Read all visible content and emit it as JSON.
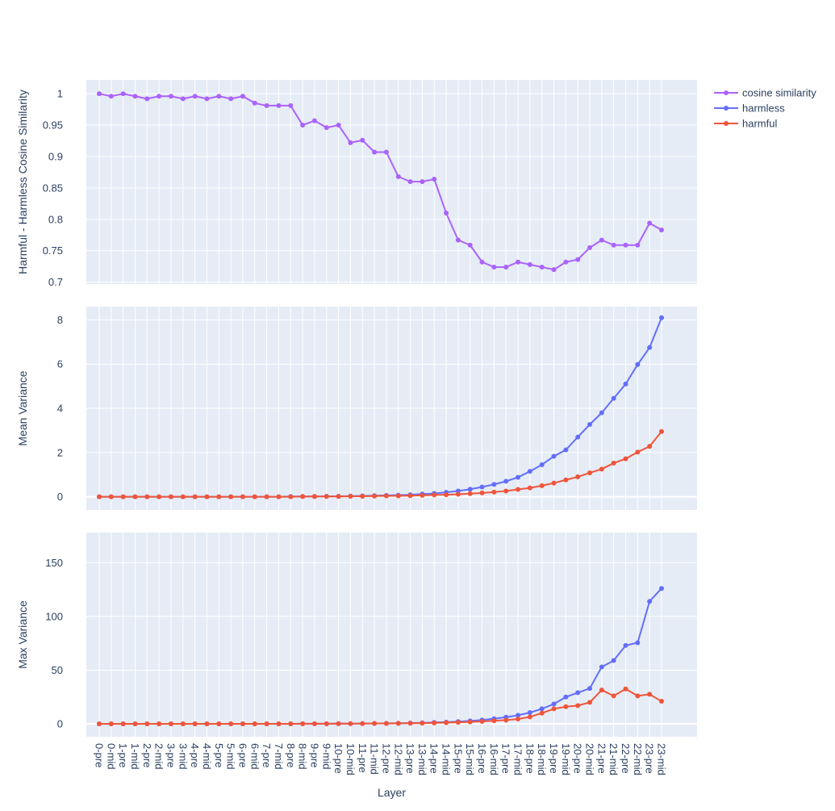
{
  "chart_data": {
    "type": "line",
    "x_categories": [
      "0-pre",
      "0-mid",
      "1-pre",
      "1-mid",
      "2-pre",
      "2-mid",
      "3-pre",
      "3-mid",
      "4-pre",
      "4-mid",
      "5-pre",
      "5-mid",
      "6-pre",
      "6-mid",
      "7-pre",
      "7-mid",
      "8-pre",
      "8-mid",
      "9-pre",
      "9-mid",
      "10-pre",
      "10-mid",
      "11-pre",
      "11-mid",
      "12-pre",
      "12-mid",
      "13-pre",
      "13-mid",
      "14-pre",
      "14-mid",
      "15-pre",
      "15-mid",
      "16-pre",
      "16-mid",
      "17-pre",
      "17-mid",
      "18-pre",
      "18-mid",
      "19-pre",
      "19-mid",
      "20-pre",
      "20-mid",
      "21-pre",
      "21-mid",
      "22-pre",
      "22-mid",
      "23-pre",
      "23-mid"
    ],
    "xlabel": "Layer",
    "legend_position": "top-right",
    "grid": true,
    "subplots": [
      {
        "ylabel": "Harmful - Harmless Cosine Similarity",
        "ylim": [
          0.697,
          1.022
        ],
        "yticks": [
          0.7,
          0.75,
          0.8,
          0.85,
          0.9,
          0.95,
          1
        ],
        "ytick_labels": [
          "0.7",
          "0.75",
          "0.8",
          "0.85",
          "0.9",
          "0.95",
          "1"
        ],
        "series": [
          {
            "name": "cosine similarity",
            "color": "#ab63fa",
            "values": [
              1.0,
              0.996,
              1.0,
              0.996,
              0.992,
              0.996,
              0.996,
              0.992,
              0.996,
              0.992,
              0.996,
              0.992,
              0.996,
              0.985,
              0.981,
              0.981,
              0.981,
              0.95,
              0.957,
              0.946,
              0.95,
              0.922,
              0.926,
              0.907,
              0.907,
              0.868,
              0.86,
              0.86,
              0.864,
              0.81,
              0.767,
              0.759,
              0.732,
              0.724,
              0.724,
              0.732,
              0.728,
              0.724,
              0.72,
              0.732,
              0.736,
              0.755,
              0.767,
              0.759,
              0.759,
              0.759,
              0.794,
              0.783
            ]
          }
        ]
      },
      {
        "ylabel": "Mean Variance",
        "ylim": [
          -0.6,
          8.6
        ],
        "yticks": [
          0,
          2,
          4,
          6,
          8
        ],
        "ytick_labels": [
          "0",
          "2",
          "4",
          "6",
          "8"
        ],
        "series": [
          {
            "name": "harmless",
            "color": "#636efa",
            "values": [
              0,
              0,
              0,
              0,
              0,
              0,
              0,
              0,
              0,
              0,
              0,
              0,
              0,
              0,
              0,
              0,
              0.01,
              0.01,
              0.01,
              0.02,
              0.02,
              0.03,
              0.04,
              0.05,
              0.06,
              0.07,
              0.09,
              0.12,
              0.15,
              0.2,
              0.26,
              0.34,
              0.44,
              0.56,
              0.7,
              0.88,
              1.15,
              1.45,
              1.83,
              2.12,
              2.7,
              3.27,
              3.8,
              4.45,
              5.1,
              5.98,
              6.75,
              8.1
            ]
          },
          {
            "name": "harmful",
            "color": "#ef553b",
            "values": [
              0,
              0,
              0,
              0,
              0,
              0,
              0,
              0,
              0,
              0,
              0,
              0,
              0,
              0,
              0,
              0,
              0,
              0.01,
              0.01,
              0.01,
              0.01,
              0.02,
              0.02,
              0.03,
              0.04,
              0.04,
              0.05,
              0.06,
              0.08,
              0.09,
              0.11,
              0.14,
              0.17,
              0.21,
              0.26,
              0.33,
              0.4,
              0.5,
              0.62,
              0.76,
              0.9,
              1.08,
              1.25,
              1.52,
              1.72,
              2.02,
              2.28,
              2.95
            ]
          }
        ]
      },
      {
        "ylabel": "Max Variance",
        "ylim": [
          -12,
          178
        ],
        "yticks": [
          0,
          50,
          100,
          150
        ],
        "ytick_labels": [
          "0",
          "50",
          "100",
          "150"
        ],
        "series": [
          {
            "name": "harmless",
            "color": "#636efa",
            "values": [
              0,
              0,
              0,
              0,
              0,
              0,
              0,
              0,
              0,
              0,
              0,
              0,
              0,
              0,
              0,
              0,
              0,
              0.1,
              0.1,
              0.1,
              0.2,
              0.2,
              0.3,
              0.4,
              0.5,
              0.6,
              0.8,
              1.0,
              1.3,
              1.6,
              2.1,
              2.7,
              3.6,
              4.8,
              6.2,
              8.0,
              10.5,
              14.0,
              18.5,
              25.0,
              29.0,
              33.0,
              53.0,
              59.0,
              73.0,
              75.5,
              114.0,
              126.0
            ]
          },
          {
            "name": "harmful",
            "color": "#ef553b",
            "values": [
              0,
              0,
              0,
              0,
              0,
              0,
              0,
              0,
              0,
              0,
              0,
              0,
              0,
              0,
              0,
              0,
              0,
              0.1,
              0.1,
              0.1,
              0.2,
              0.2,
              0.3,
              0.4,
              0.4,
              0.5,
              0.6,
              0.7,
              0.9,
              1.1,
              1.4,
              1.8,
              2.3,
              2.9,
              3.5,
              4.5,
              6.5,
              10.0,
              14.0,
              16.0,
              17.0,
              20.0,
              31.5,
              26.0,
              32.5,
              26.0,
              27.5,
              21.0
            ]
          }
        ]
      }
    ]
  }
}
